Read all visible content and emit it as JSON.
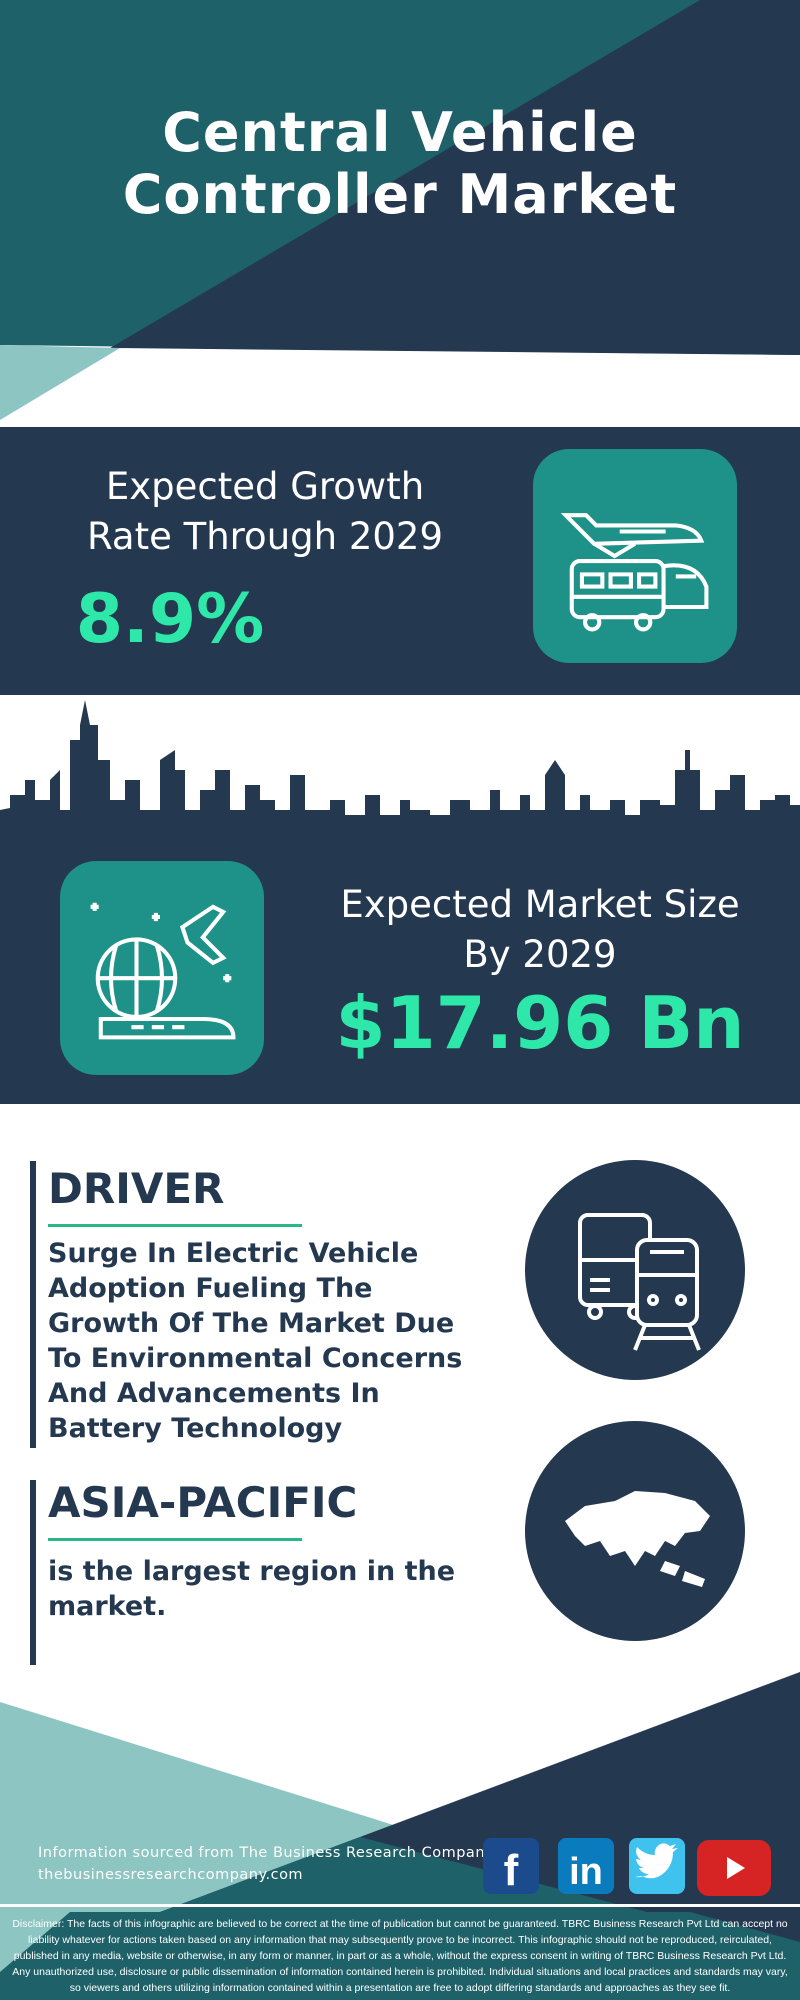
{
  "header": {
    "title_line1": "Central Vehicle",
    "title_line2": "Controller Market"
  },
  "growth": {
    "label_line1": "Expected Growth",
    "label_line2": "Rate Through 2029",
    "value": "8.9%",
    "icon": "vehicles-plane-bus-train-icon"
  },
  "market": {
    "label_line1": "Expected Market Size",
    "label_line2": "By 2029",
    "value": "$17.96 Bn",
    "icon": "globe-plane-train-icon"
  },
  "driver": {
    "heading": "DRIVER",
    "text": "Surge In Electric Vehicle Adoption Fueling The Growth Of The Market Due To Environmental Concerns And Advancements In Battery Technology",
    "icon": "bus-train-icon"
  },
  "region": {
    "heading": "ASIA-PACIFIC",
    "text": "is the largest region in the market.",
    "icon": "asia-map-icon"
  },
  "footer": {
    "source": "Information sourced from The Business Research Company",
    "url": "thebusinessresearchcompany.com",
    "social": [
      "facebook-icon",
      "linkedin-icon",
      "twitter-icon",
      "youtube-icon"
    ],
    "disclaimer": "Disclaimer: The facts of this infographic are believed to be correct at the time of publication but cannot be guaranteed. TBRC Business Research Pvt Ltd can accept no liability whatever for actions taken based on any information that may subsequently prove to be incorrect. This infographic should not be reproduced, reirculated, published in any media, website or otherwise, in any form or manner, in part or as a whole, without the express consent in writing of TBRC Business Research Pvt Ltd. Any unauthorized use, disclosure or public dissemination of information contained herein is prohibited. Individual situations and local practices and standards may vary, so viewers and others utilizing information contained within a presentation are free to adopt differing standards and approaches as they see fit."
  },
  "colors": {
    "navy": "#243850",
    "teal": "#1f6168",
    "light_teal": "#8cc5c1",
    "accent_green": "#2ee8a9",
    "icon_teal": "#1e9188"
  }
}
